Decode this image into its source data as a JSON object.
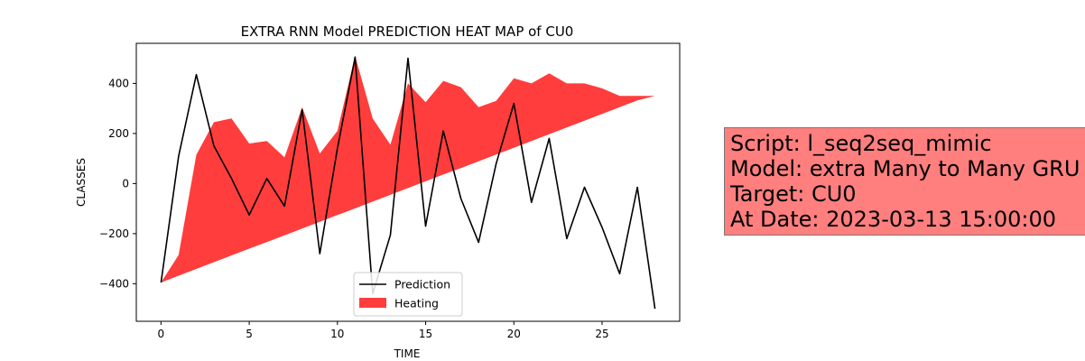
{
  "chart_data": {
    "type": "line",
    "title": "EXTRA RNN Model PREDICTION HEAT MAP of CU0",
    "xlabel": "TIME",
    "ylabel": "CLASSES",
    "xlim": [
      -1.4,
      29.4
    ],
    "ylim": [
      -550,
      560
    ],
    "xticks": [
      0,
      5,
      10,
      15,
      20,
      25
    ],
    "yticks": [
      -400,
      -200,
      0,
      200,
      400
    ],
    "grid": false,
    "legend_position": "bottom-center",
    "prediction_color": "#000000",
    "heating_color": "#ff3333",
    "series": [
      {
        "name": "Prediction",
        "x": [
          0,
          1,
          2,
          3,
          4,
          5,
          6,
          7,
          8,
          9,
          10,
          11,
          12,
          13,
          14,
          15,
          16,
          17,
          18,
          19,
          20,
          21,
          22,
          23,
          24,
          25,
          26,
          27,
          28
        ],
        "values": [
          -395,
          110,
          435,
          150,
          20,
          -125,
          20,
          -90,
          295,
          -280,
          140,
          505,
          -440,
          -205,
          500,
          -170,
          210,
          -60,
          -235,
          80,
          320,
          -75,
          180,
          -220,
          -15,
          -175,
          -360,
          -15,
          -500
        ]
      },
      {
        "name": "Heating",
        "type": "area",
        "x": [
          0,
          1,
          2,
          3,
          4,
          5,
          6,
          7,
          8,
          9,
          10,
          11,
          12,
          13,
          14,
          15,
          16,
          17,
          18,
          19,
          20,
          21,
          22,
          23,
          24,
          25,
          26,
          27,
          28
        ],
        "upper": [
          -395,
          -285,
          115,
          245,
          260,
          160,
          170,
          105,
          305,
          120,
          210,
          510,
          260,
          155,
          400,
          325,
          410,
          385,
          305,
          330,
          420,
          400,
          440,
          400,
          400,
          380,
          350,
          350,
          350
        ],
        "lower": [
          -395,
          -368,
          -341,
          -314,
          -287,
          -260,
          -234,
          -207,
          -180,
          -153,
          -126,
          -99,
          -72,
          -45,
          -18,
          9,
          36,
          62,
          89,
          116,
          143,
          170,
          197,
          224,
          251,
          278,
          305,
          332,
          350
        ]
      }
    ]
  },
  "info": {
    "lines": [
      "Script: l_seq2seq_mimic",
      "Model: extra Many to Many GRU",
      "Target: CU0",
      "At Date: 2023-03-13 15:00:00"
    ]
  }
}
